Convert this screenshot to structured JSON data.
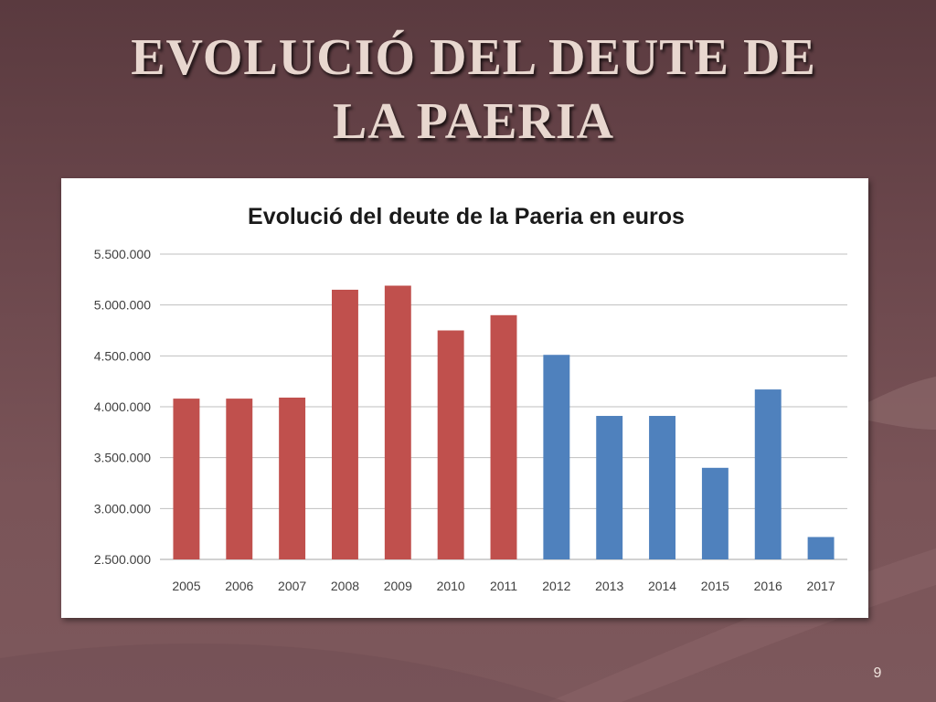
{
  "slide": {
    "title_line1": "EVOLUCIÓ DEL DEUTE DE",
    "title_line2": "LA PAERIA",
    "page_number": "9"
  },
  "colors": {
    "series_red": "#c0504d",
    "series_blue": "#4f81bd"
  },
  "chart_data": {
    "type": "bar",
    "title": "Evolució del deute de la Paeria en euros",
    "categories": [
      "2005",
      "2006",
      "2007",
      "2008",
      "2009",
      "2010",
      "2011",
      "2012",
      "2013",
      "2014",
      "2015",
      "2016",
      "2017"
    ],
    "values": [
      4080000,
      4080000,
      4090000,
      5150000,
      5190000,
      4750000,
      4900000,
      4510000,
      3910000,
      3910000,
      3400000,
      4170000,
      2720000
    ],
    "bar_colors": [
      "#c0504d",
      "#c0504d",
      "#c0504d",
      "#c0504d",
      "#c0504d",
      "#c0504d",
      "#c0504d",
      "#4f81bd",
      "#4f81bd",
      "#4f81bd",
      "#4f81bd",
      "#4f81bd",
      "#4f81bd"
    ],
    "ylim": [
      2500000,
      5500000
    ],
    "yticks": [
      "2.500.000",
      "3.000.000",
      "3.500.000",
      "4.000.000",
      "4.500.000",
      "5.000.000",
      "5.500.000"
    ],
    "grid": true,
    "legend": "none"
  }
}
